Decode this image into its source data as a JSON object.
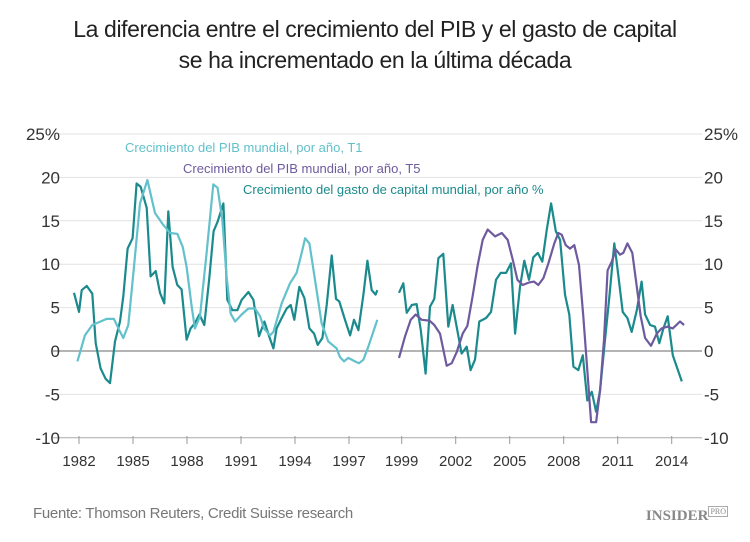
{
  "title_line1": "La diferencia entre el crecimiento del PIB y el gasto de capital",
  "title_line2": "se ha incrementado en la última década",
  "source": "Fuente: Thomson Reuters, Credit Suisse research",
  "logo": "INSIDER",
  "logo_suffix": "PRO",
  "chart_data": {
    "type": "line",
    "title": "La diferencia entre el crecimiento del PIB y el gasto de capital se ha incrementado en la última década",
    "ylim": [
      -10,
      25
    ],
    "yticks": [
      "25%",
      "20",
      "15",
      "10",
      "5",
      "0",
      "-5",
      "-10"
    ],
    "ytick_values": [
      25,
      20,
      15,
      10,
      5,
      0,
      -5,
      -10
    ],
    "xticks": [
      "1982",
      "1985",
      "1988",
      "1991",
      "1994",
      "1997",
      "1999",
      "2002",
      "2005",
      "2008",
      "2011",
      "2014"
    ],
    "grid": true,
    "legend_placement": "top",
    "series": [
      {
        "name": "Crecimiento del PIB mundial, por año, T1",
        "color": "#62c1cb",
        "points": [
          [
            1981.91,
            -1.2
          ],
          [
            1982.33,
            1.8
          ],
          [
            1982.74,
            3.0
          ],
          [
            1983.2,
            3.4
          ],
          [
            1983.54,
            3.7
          ],
          [
            1983.94,
            3.7
          ],
          [
            1984.24,
            2.4
          ],
          [
            1984.46,
            1.5
          ],
          [
            1984.74,
            3.0
          ],
          [
            1985.02,
            9.0
          ],
          [
            1985.39,
            17.0
          ],
          [
            1985.8,
            19.7
          ],
          [
            1986.22,
            15.9
          ],
          [
            1986.69,
            14.5
          ],
          [
            1987.06,
            13.6
          ],
          [
            1987.46,
            13.5
          ],
          [
            1987.76,
            12.0
          ],
          [
            1987.98,
            9.7
          ],
          [
            1988.26,
            5.1
          ],
          [
            1988.44,
            2.6
          ],
          [
            1988.72,
            4.0
          ],
          [
            1989.09,
            11.3
          ],
          [
            1989.46,
            19.2
          ],
          [
            1989.7,
            18.8
          ],
          [
            1989.96,
            15.1
          ],
          [
            1990.2,
            8.6
          ],
          [
            1990.43,
            4.3
          ],
          [
            1990.67,
            3.4
          ],
          [
            1991.04,
            4.2
          ],
          [
            1991.41,
            4.9
          ],
          [
            1991.78,
            4.9
          ],
          [
            1992.06,
            4.0
          ],
          [
            1992.28,
            2.6
          ],
          [
            1992.61,
            1.8
          ],
          [
            1992.8,
            2.2
          ],
          [
            1993.26,
            5.5
          ],
          [
            1993.72,
            7.8
          ],
          [
            1994.09,
            9.0
          ],
          [
            1994.37,
            11.3
          ],
          [
            1994.56,
            13.0
          ],
          [
            1994.8,
            12.4
          ],
          [
            1995.11,
            8.2
          ],
          [
            1995.48,
            3.2
          ],
          [
            1995.85,
            1.1
          ],
          [
            1996.31,
            0.3
          ],
          [
            1996.5,
            -0.7
          ],
          [
            1996.72,
            -1.2
          ],
          [
            1996.96,
            -0.8
          ],
          [
            1997.33,
            -1.2
          ],
          [
            1997.56,
            -1.4
          ],
          [
            1997.8,
            -1.0
          ],
          [
            1998.07,
            0.5
          ],
          [
            1998.57,
            3.6
          ]
        ]
      },
      {
        "name": "Crecimiento del PIB mundial, por año, T5",
        "color": "#6e5a9e",
        "points": [
          [
            1998.85,
            -0.8
          ],
          [
            1999.19,
            1.7
          ],
          [
            1999.5,
            3.6
          ],
          [
            1999.78,
            4.2
          ],
          [
            2000.11,
            3.6
          ],
          [
            2000.54,
            3.5
          ],
          [
            2000.81,
            3.0
          ],
          [
            2001.13,
            2.0
          ],
          [
            2001.5,
            -1.7
          ],
          [
            2001.78,
            -1.4
          ],
          [
            2002.06,
            -0.1
          ],
          [
            2002.39,
            2.0
          ],
          [
            2002.65,
            2.9
          ],
          [
            2002.94,
            6.3
          ],
          [
            2003.22,
            9.9
          ],
          [
            2003.5,
            12.8
          ],
          [
            2003.78,
            14.0
          ],
          [
            2004.19,
            13.2
          ],
          [
            2004.56,
            13.6
          ],
          [
            2004.89,
            12.8
          ],
          [
            2005.17,
            10.5
          ],
          [
            2005.43,
            8.2
          ],
          [
            2005.72,
            7.6
          ],
          [
            2006.09,
            7.9
          ],
          [
            2006.35,
            8.0
          ],
          [
            2006.59,
            7.6
          ],
          [
            2006.87,
            8.4
          ],
          [
            2007.15,
            10.1
          ],
          [
            2007.48,
            12.4
          ],
          [
            2007.7,
            13.6
          ],
          [
            2007.89,
            13.4
          ],
          [
            2008.11,
            12.2
          ],
          [
            2008.35,
            11.8
          ],
          [
            2008.59,
            12.2
          ],
          [
            2008.85,
            9.9
          ],
          [
            2009.09,
            4.0
          ],
          [
            2009.31,
            -2.2
          ],
          [
            2009.52,
            -8.2
          ],
          [
            2009.8,
            -8.2
          ],
          [
            2010.02,
            -4.5
          ],
          [
            2010.24,
            1.3
          ],
          [
            2010.44,
            9.3
          ],
          [
            2010.67,
            10.3
          ],
          [
            2010.89,
            11.7
          ],
          [
            2011.13,
            11.1
          ],
          [
            2011.31,
            11.3
          ],
          [
            2011.54,
            12.4
          ],
          [
            2011.81,
            11.3
          ],
          [
            2012.06,
            7.4
          ],
          [
            2012.28,
            4.0
          ],
          [
            2012.52,
            1.5
          ],
          [
            2012.85,
            0.6
          ],
          [
            2013.17,
            2.0
          ],
          [
            2013.44,
            2.6
          ],
          [
            2013.76,
            2.8
          ],
          [
            2014.06,
            2.6
          ],
          [
            2014.46,
            3.4
          ],
          [
            2014.69,
            3.0
          ]
        ]
      },
      {
        "name": "Crecimiento del gasto de capital mundial, por año %",
        "color": "#1b8a8c",
        "points": [
          [
            1981.72,
            6.7
          ],
          [
            1982.0,
            4.5
          ],
          [
            1982.15,
            7.0
          ],
          [
            1982.43,
            7.5
          ],
          [
            1982.74,
            6.6
          ],
          [
            1982.93,
            0.9
          ],
          [
            1983.2,
            -2.0
          ],
          [
            1983.48,
            -3.2
          ],
          [
            1983.72,
            -3.7
          ],
          [
            1984.0,
            1.1
          ],
          [
            1984.28,
            3.4
          ],
          [
            1984.46,
            6.3
          ],
          [
            1984.7,
            11.8
          ],
          [
            1984.98,
            13.0
          ],
          [
            1985.2,
            19.3
          ],
          [
            1985.43,
            18.9
          ],
          [
            1985.76,
            16.5
          ],
          [
            1985.98,
            8.6
          ],
          [
            1986.26,
            9.2
          ],
          [
            1986.5,
            6.7
          ],
          [
            1986.74,
            5.5
          ],
          [
            1986.96,
            16.1
          ],
          [
            1987.2,
            9.7
          ],
          [
            1987.46,
            7.6
          ],
          [
            1987.7,
            7.1
          ],
          [
            1987.98,
            1.3
          ],
          [
            1988.2,
            2.6
          ],
          [
            1988.44,
            3.2
          ],
          [
            1988.69,
            4.2
          ],
          [
            1988.96,
            3.0
          ],
          [
            1989.24,
            8.4
          ],
          [
            1989.48,
            13.8
          ],
          [
            1989.7,
            14.9
          ],
          [
            1990.02,
            17.0
          ],
          [
            1990.24,
            5.9
          ],
          [
            1990.52,
            4.7
          ],
          [
            1990.8,
            4.7
          ],
          [
            1991.04,
            5.9
          ],
          [
            1991.41,
            6.8
          ],
          [
            1991.69,
            5.9
          ],
          [
            1992.0,
            1.7
          ],
          [
            1992.3,
            3.4
          ],
          [
            1992.56,
            1.7
          ],
          [
            1992.8,
            0.3
          ],
          [
            1992.98,
            2.6
          ],
          [
            1993.26,
            3.8
          ],
          [
            1993.54,
            4.9
          ],
          [
            1993.76,
            5.3
          ],
          [
            1993.96,
            3.6
          ],
          [
            1994.24,
            7.4
          ],
          [
            1994.52,
            6.1
          ],
          [
            1994.8,
            2.6
          ],
          [
            1995.06,
            2.0
          ],
          [
            1995.26,
            0.7
          ],
          [
            1995.52,
            1.5
          ],
          [
            1995.76,
            5.3
          ],
          [
            1996.04,
            11.0
          ],
          [
            1996.28,
            6.0
          ],
          [
            1996.46,
            5.7
          ],
          [
            1996.78,
            3.6
          ],
          [
            1997.06,
            1.8
          ],
          [
            1997.28,
            3.6
          ],
          [
            1997.52,
            2.4
          ],
          [
            1997.8,
            6.5
          ],
          [
            1998.02,
            10.4
          ],
          [
            1998.26,
            7.0
          ],
          [
            1998.48,
            6.5
          ],
          [
            1998.57,
            7.0
          ],
          null,
          [
            1998.85,
            6.7
          ],
          [
            1999.09,
            7.8
          ],
          [
            1999.28,
            4.4
          ],
          [
            1999.56,
            5.3
          ],
          [
            1999.83,
            5.4
          ],
          [
            2000.06,
            2.4
          ],
          [
            2000.33,
            -2.6
          ],
          [
            2000.57,
            5.1
          ],
          [
            2000.81,
            6.0
          ],
          [
            2001.04,
            10.7
          ],
          [
            2001.31,
            11.2
          ],
          [
            2001.59,
            2.8
          ],
          [
            2001.83,
            5.3
          ],
          [
            2002.09,
            2.4
          ],
          [
            2002.33,
            -0.3
          ],
          [
            2002.61,
            0.5
          ],
          [
            2002.83,
            -2.2
          ],
          [
            2003.07,
            -1.0
          ],
          [
            2003.31,
            3.4
          ],
          [
            2003.69,
            3.8
          ],
          [
            2003.96,
            4.5
          ],
          [
            2004.24,
            8.2
          ],
          [
            2004.5,
            9.0
          ],
          [
            2004.8,
            9.0
          ],
          [
            2005.07,
            10.1
          ],
          [
            2005.3,
            2.0
          ],
          [
            2005.57,
            7.4
          ],
          [
            2005.81,
            10.4
          ],
          [
            2006.07,
            8.2
          ],
          [
            2006.31,
            10.8
          ],
          [
            2006.56,
            11.3
          ],
          [
            2006.81,
            10.3
          ],
          [
            2007.06,
            14.0
          ],
          [
            2007.3,
            17.0
          ],
          [
            2007.56,
            13.8
          ],
          [
            2007.8,
            12.8
          ],
          [
            2008.07,
            6.5
          ],
          [
            2008.31,
            4.2
          ],
          [
            2008.54,
            -1.8
          ],
          [
            2008.81,
            -2.2
          ],
          [
            2009.06,
            -0.5
          ],
          [
            2009.31,
            -5.7
          ],
          [
            2009.56,
            -4.7
          ],
          [
            2009.8,
            -7.0
          ],
          [
            2010.02,
            -4.5
          ],
          [
            2010.24,
            0.1
          ],
          [
            2010.54,
            6.3
          ],
          [
            2010.81,
            12.4
          ],
          [
            2011.0,
            9.3
          ],
          [
            2011.28,
            4.5
          ],
          [
            2011.54,
            3.8
          ],
          [
            2011.78,
            2.2
          ],
          [
            2012.06,
            4.7
          ],
          [
            2012.33,
            8.0
          ],
          [
            2012.52,
            4.2
          ],
          [
            2012.8,
            3.0
          ],
          [
            2013.07,
            2.8
          ],
          [
            2013.31,
            0.9
          ],
          [
            2013.54,
            2.6
          ],
          [
            2013.78,
            4.0
          ],
          [
            2014.06,
            -0.5
          ],
          [
            2014.31,
            -2.0
          ],
          [
            2014.56,
            -3.5
          ]
        ]
      }
    ]
  }
}
